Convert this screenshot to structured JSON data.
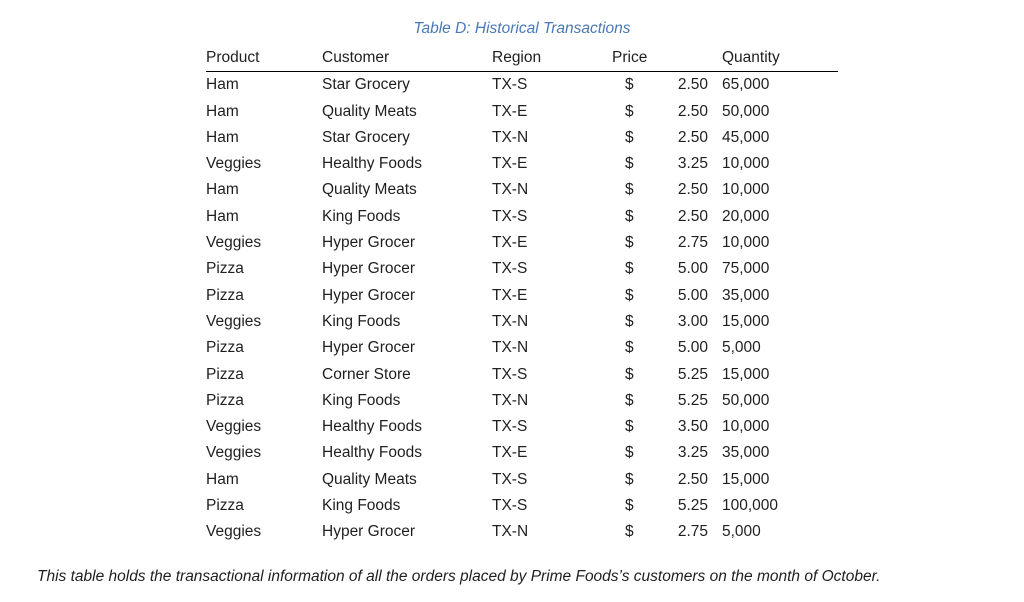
{
  "title": "Table D: Historical Transactions",
  "columns": [
    "Product",
    "Customer",
    "Region",
    "Price",
    "Quantity"
  ],
  "rows": [
    {
      "product": "Ham",
      "customer": "Star Grocery",
      "region": "TX-S",
      "currency": "$",
      "price": "2.50",
      "quantity": "65,000"
    },
    {
      "product": "Ham",
      "customer": "Quality Meats",
      "region": "TX-E",
      "currency": "$",
      "price": "2.50",
      "quantity": "50,000"
    },
    {
      "product": "Ham",
      "customer": "Star Grocery",
      "region": "TX-N",
      "currency": "$",
      "price": "2.50",
      "quantity": "45,000"
    },
    {
      "product": "Veggies",
      "customer": "Healthy Foods",
      "region": "TX-E",
      "currency": "$",
      "price": "3.25",
      "quantity": "10,000"
    },
    {
      "product": "Ham",
      "customer": "Quality Meats",
      "region": "TX-N",
      "currency": "$",
      "price": "2.50",
      "quantity": "10,000"
    },
    {
      "product": "Ham",
      "customer": "King Foods",
      "region": "TX-S",
      "currency": "$",
      "price": "2.50",
      "quantity": "20,000"
    },
    {
      "product": "Veggies",
      "customer": "Hyper Grocer",
      "region": "TX-E",
      "currency": "$",
      "price": "2.75",
      "quantity": "10,000"
    },
    {
      "product": "Pizza",
      "customer": "Hyper Grocer",
      "region": "TX-S",
      "currency": "$",
      "price": "5.00",
      "quantity": "75,000"
    },
    {
      "product": "Pizza",
      "customer": "Hyper Grocer",
      "region": "TX-E",
      "currency": "$",
      "price": "5.00",
      "quantity": "35,000"
    },
    {
      "product": "Veggies",
      "customer": "King Foods",
      "region": "TX-N",
      "currency": "$",
      "price": "3.00",
      "quantity": "15,000"
    },
    {
      "product": "Pizza",
      "customer": "Hyper Grocer",
      "region": "TX-N",
      "currency": "$",
      "price": "5.00",
      "quantity": "5,000"
    },
    {
      "product": "Pizza",
      "customer": "Corner Store",
      "region": "TX-S",
      "currency": "$",
      "price": "5.25",
      "quantity": "15,000"
    },
    {
      "product": "Pizza",
      "customer": "King Foods",
      "region": "TX-N",
      "currency": "$",
      "price": "5.25",
      "quantity": "50,000"
    },
    {
      "product": "Veggies",
      "customer": "Healthy Foods",
      "region": "TX-S",
      "currency": "$",
      "price": "3.50",
      "quantity": "10,000"
    },
    {
      "product": "Veggies",
      "customer": "Healthy Foods",
      "region": "TX-E",
      "currency": "$",
      "price": "3.25",
      "quantity": "35,000"
    },
    {
      "product": "Ham",
      "customer": "Quality Meats",
      "region": "TX-S",
      "currency": "$",
      "price": "2.50",
      "quantity": "15,000"
    },
    {
      "product": "Pizza",
      "customer": "King Foods",
      "region": "TX-S",
      "currency": "$",
      "price": "5.25",
      "quantity": "100,000"
    },
    {
      "product": "Veggies",
      "customer": "Hyper Grocer",
      "region": "TX-N",
      "currency": "$",
      "price": "2.75",
      "quantity": "5,000"
    }
  ],
  "caption": "This table holds the transactional information of all the orders placed by Prime Foods’s customers on the month of October.",
  "colors": {
    "title_blue": "#4a78b4",
    "body_text": "#1f1f1f",
    "header_rule": "#000000",
    "background": "#ffffff"
  }
}
